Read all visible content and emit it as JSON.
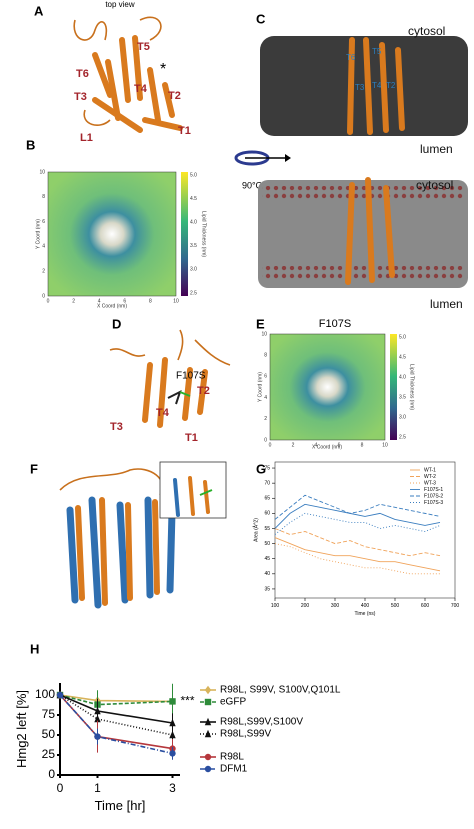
{
  "letters": [
    "A",
    "B",
    "C",
    "D",
    "E",
    "F",
    "G",
    "H"
  ],
  "panel_a": {
    "title": "top view",
    "labels": [
      "T5",
      "T6",
      "T4",
      "T3",
      "T2",
      "L1",
      "T1"
    ],
    "asterisk": "*"
  },
  "panel_b": {
    "xlabel": "X Coord (nm)",
    "ylabel": "Y Coord (nm)",
    "ticks": [
      "0",
      "2",
      "4",
      "6",
      "8",
      "10"
    ],
    "colorbar_label": "Lipid Thickness (nm)",
    "colorbar_ticks": [
      "5.0",
      "4.5",
      "4.0",
      "3.5",
      "3.0",
      "2.5"
    ]
  },
  "rotation": "90°C",
  "panel_c": {
    "cytosol_top": "cytosol",
    "lumen_top": "lumen",
    "helices": [
      "T6",
      "T5",
      "T3",
      "T4",
      "T2"
    ],
    "cytosol_bottom": "cytosol",
    "lumen_bottom": "lumen"
  },
  "panel_d": {
    "mutation": "F107S",
    "labels": [
      "T2",
      "T4",
      "T3",
      "T1"
    ]
  },
  "panel_e": {
    "title": "F107S",
    "xlabel": "X Coord (nm)",
    "ylabel": "Y Coord (nm)",
    "ticks": [
      "0",
      "2",
      "4",
      "6",
      "8",
      "10"
    ],
    "colorbar_label": "Lipid Thickness (nm)",
    "colorbar_ticks": [
      "5.0",
      "4.5",
      "4.0",
      "3.5",
      "3.0",
      "2.5"
    ]
  },
  "chart_data": [
    {
      "type": "line",
      "xlabel": "Time (ns)",
      "ylabel": "Area (Å^2)",
      "x": [
        100,
        150,
        200,
        250,
        300,
        350,
        400,
        450,
        500,
        550,
        600,
        650
      ],
      "xlim": [
        100,
        700
      ],
      "ylim": [
        32,
        77
      ],
      "xticks": [
        100,
        200,
        300,
        400,
        500,
        600,
        700
      ],
      "yticks": [
        35,
        40,
        45,
        50,
        55,
        60,
        65,
        70,
        75
      ],
      "series": [
        {
          "name": "WT-1",
          "color": "#f0a35a",
          "linestyle": "solid",
          "values": [
            52,
            50,
            48,
            47,
            46,
            46,
            45,
            44,
            44,
            43,
            42,
            41
          ]
        },
        {
          "name": "WT-2",
          "color": "#f0a35a",
          "linestyle": "dashed",
          "values": [
            55,
            53,
            54,
            52,
            50,
            51,
            49,
            48,
            47,
            46,
            47,
            46
          ]
        },
        {
          "name": "WT-3",
          "color": "#f0a35a",
          "linestyle": "dotted",
          "values": [
            50,
            49,
            47,
            45,
            44,
            43,
            42,
            42,
            41,
            40,
            40,
            40
          ]
        },
        {
          "name": "F107S-1",
          "color": "#3a7dbf",
          "linestyle": "solid",
          "values": [
            55,
            60,
            63,
            62,
            61,
            60,
            59,
            60,
            58,
            57,
            56,
            57
          ]
        },
        {
          "name": "F107S-2",
          "color": "#3a7dbf",
          "linestyle": "dashed",
          "values": [
            58,
            62,
            66,
            64,
            62,
            60,
            61,
            63,
            62,
            61,
            60,
            59
          ]
        },
        {
          "name": "F107S-3",
          "color": "#3a7dbf",
          "linestyle": "dotted",
          "values": [
            53,
            57,
            60,
            59,
            58,
            57,
            57,
            55,
            56,
            55,
            54,
            56
          ]
        }
      ]
    },
    {
      "type": "line",
      "xlabel": "Time [hr]",
      "ylabel": "Hmg2 left [%]",
      "x": [
        0,
        1,
        3
      ],
      "xlim": [
        0,
        3.2
      ],
      "ylim": [
        0,
        115
      ],
      "xticks": [
        0,
        1,
        3
      ],
      "yticks": [
        0,
        25,
        50,
        75,
        100
      ],
      "annotation": "***",
      "series": [
        {
          "name": "R98L, S99V, S100V,Q101L",
          "color": "#d8b45c",
          "linestyle": "solid",
          "marker": "diamond",
          "values": [
            100,
            93,
            92
          ],
          "errors": [
            0,
            5,
            6
          ]
        },
        {
          "name": "eGFP",
          "color": "#2e8b3a",
          "linestyle": "dashed",
          "marker": "square",
          "values": [
            100,
            88,
            92
          ],
          "errors": [
            0,
            18,
            22
          ]
        },
        {
          "name": "R98L,S99V,S100V",
          "color": "#111111",
          "linestyle": "solid",
          "marker": "triangle",
          "values": [
            100,
            80,
            65
          ],
          "errors": [
            0,
            15,
            12
          ]
        },
        {
          "name": "R98L,S99V",
          "color": "#111111",
          "linestyle": "dotted",
          "marker": "triangle",
          "values": [
            100,
            70,
            50
          ],
          "errors": [
            0,
            14,
            10
          ]
        },
        {
          "name": "R98L",
          "color": "#b5373c",
          "linestyle": "solid",
          "marker": "circle",
          "values": [
            100,
            48,
            33
          ],
          "errors": [
            0,
            20,
            12
          ]
        },
        {
          "name": "DFM1",
          "color": "#2a4ea0",
          "linestyle": "dashdot",
          "marker": "circle",
          "values": [
            100,
            48,
            27
          ],
          "errors": [
            0,
            10,
            8
          ]
        }
      ]
    }
  ]
}
